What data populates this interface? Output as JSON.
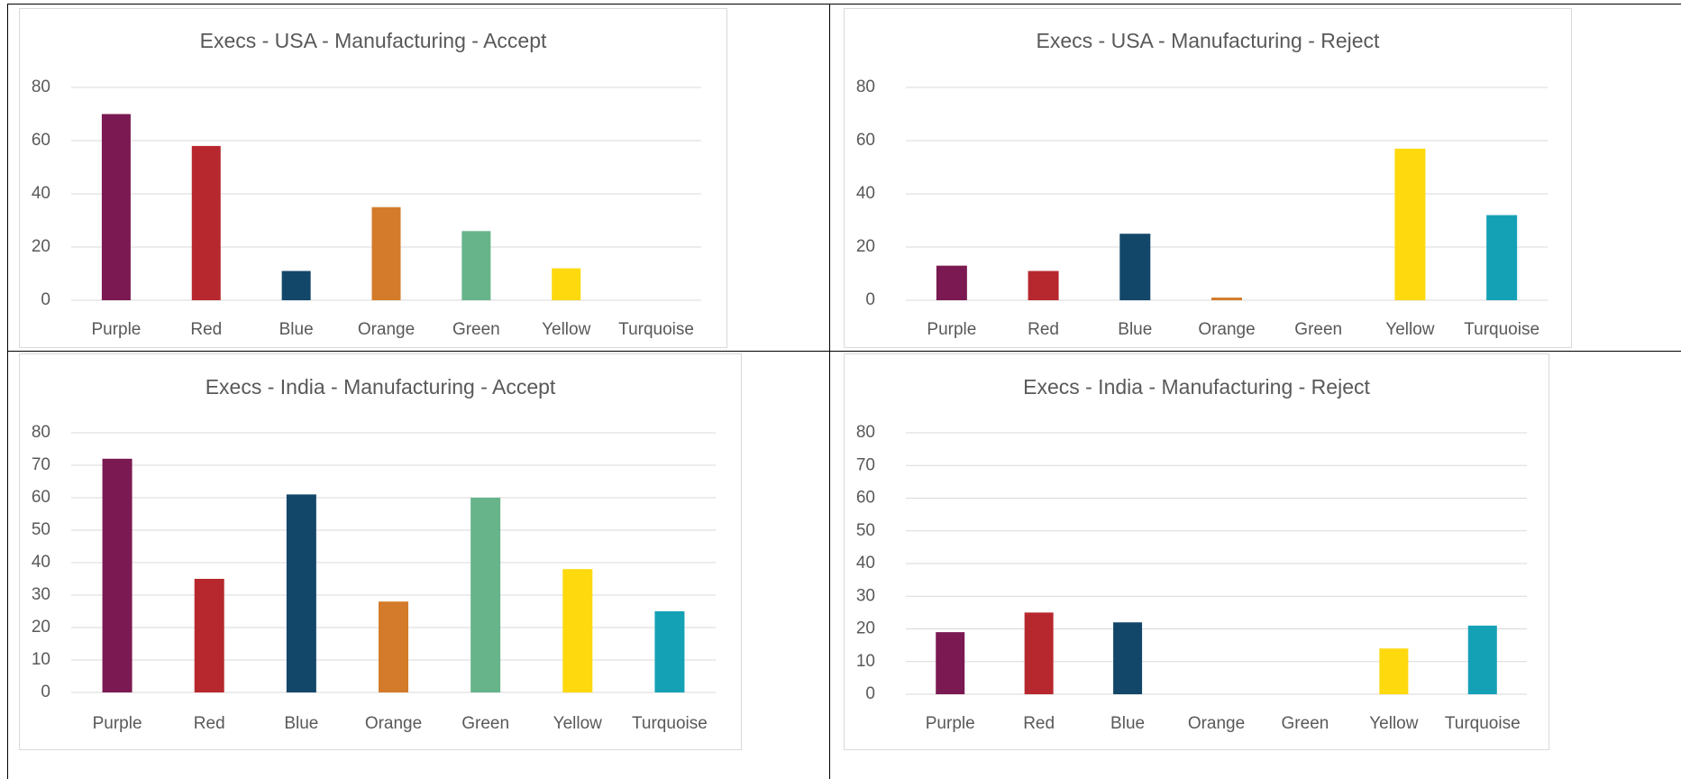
{
  "colors": {
    "Purple": "#7b1a52",
    "Red": "#b7282e",
    "Blue": "#134769",
    "Orange": "#d37b2a",
    "Green": "#67b48a",
    "Yellow": "#fdd90e",
    "Turquoise": "#14a1b6",
    "gridline": "#d9d9d9",
    "text": "#595959"
  },
  "chart_data": [
    {
      "type": "bar",
      "title": "Execs - USA - Manufacturing - Accept",
      "categories": [
        "Purple",
        "Red",
        "Blue",
        "Orange",
        "Green",
        "Yellow",
        "Turquoise"
      ],
      "values": [
        70,
        58,
        11,
        35,
        26,
        12,
        0
      ],
      "ylim": [
        0,
        80
      ],
      "yticks": [
        0,
        20,
        40,
        60,
        80
      ],
      "grid": true,
      "legend": "none"
    },
    {
      "type": "bar",
      "title": "Execs - USA - Manufacturing - Reject",
      "categories": [
        "Purple",
        "Red",
        "Blue",
        "Orange",
        "Green",
        "Yellow",
        "Turquoise"
      ],
      "values": [
        13,
        11,
        25,
        1,
        0,
        57,
        32
      ],
      "ylim": [
        0,
        80
      ],
      "yticks": [
        0,
        20,
        40,
        60,
        80
      ],
      "grid": true,
      "legend": "none"
    },
    {
      "type": "bar",
      "title": "Execs - India - Manufacturing - Accept",
      "categories": [
        "Purple",
        "Red",
        "Blue",
        "Orange",
        "Green",
        "Yellow",
        "Turquoise"
      ],
      "values": [
        72,
        35,
        61,
        28,
        60,
        38,
        25
      ],
      "ylim": [
        0,
        80
      ],
      "yticks": [
        0,
        10,
        20,
        30,
        40,
        50,
        60,
        70,
        80
      ],
      "grid": true,
      "legend": "none"
    },
    {
      "type": "bar",
      "title": "Execs - India - Manufacturing - Reject",
      "categories": [
        "Purple",
        "Red",
        "Blue",
        "Orange",
        "Green",
        "Yellow",
        "Turquoise"
      ],
      "values": [
        19,
        25,
        22,
        0,
        0,
        14,
        21
      ],
      "ylim": [
        0,
        80
      ],
      "yticks": [
        0,
        10,
        20,
        30,
        40,
        50,
        60,
        70,
        80
      ],
      "grid": true,
      "legend": "none"
    }
  ]
}
